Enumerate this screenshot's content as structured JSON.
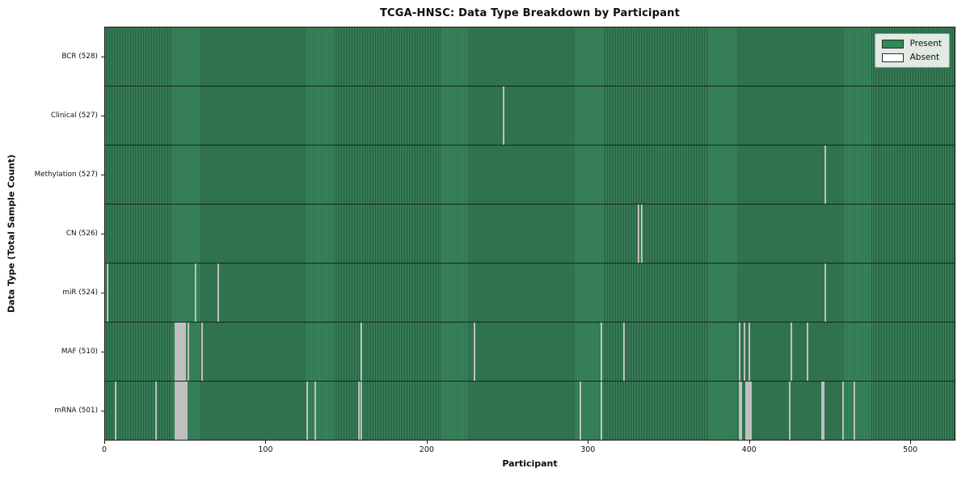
{
  "title": "TCGA-HNSC: Data Type Breakdown by Participant",
  "xlabel": "Participant",
  "ylabel": "Data Type (Total Sample Count)",
  "legend": {
    "present_label": "Present",
    "absent_label": "Absent"
  },
  "colors": {
    "present": "#2e8b57",
    "present_stripe_dark": "#265a3d",
    "absent": "#ffffff",
    "absent_edge": "#bfbfbf",
    "row_divider": "#10291a",
    "frame": "#1a1a1a"
  },
  "chart_data": {
    "type": "heatmap",
    "title": "TCGA-HNSC: Data Type Breakdown by Participant",
    "xlabel": "Participant",
    "ylabel": "Data Type (Total Sample Count)",
    "legend": [
      "Present",
      "Absent"
    ],
    "legend_position": "upper right",
    "n_participants": 528,
    "xlim": [
      0,
      528
    ],
    "x_ticks": [
      0,
      100,
      200,
      300,
      400,
      500
    ],
    "rows": [
      {
        "name": "BCR",
        "label": "BCR (528)",
        "total": 528,
        "absent_indices": []
      },
      {
        "name": "Clinical",
        "label": "Clinical (527)",
        "total": 527,
        "absent_indices": [
          247
        ]
      },
      {
        "name": "Methylation",
        "label": "Methylation (527)",
        "total": 527,
        "absent_indices": [
          447
        ]
      },
      {
        "name": "CN",
        "label": "CN (526)",
        "total": 526,
        "absent_indices": [
          331,
          333
        ]
      },
      {
        "name": "miR",
        "label": "miR (524)",
        "total": 524,
        "absent_indices": [
          1,
          56,
          70,
          447
        ]
      },
      {
        "name": "MAF",
        "label": "MAF (510)",
        "total": 510,
        "absent_indices": [
          43,
          44,
          45,
          46,
          47,
          48,
          49,
          51,
          60,
          159,
          229,
          308,
          322,
          394,
          397,
          400,
          426,
          436
        ]
      },
      {
        "name": "mRNA",
        "label": "mRNA (501)",
        "total": 501,
        "absent_indices": [
          6,
          31,
          43,
          44,
          45,
          46,
          47,
          48,
          49,
          50,
          125,
          130,
          157,
          159,
          295,
          308,
          394,
          395,
          398,
          399,
          400,
          401,
          425,
          445,
          446,
          458,
          465
        ]
      }
    ]
  }
}
